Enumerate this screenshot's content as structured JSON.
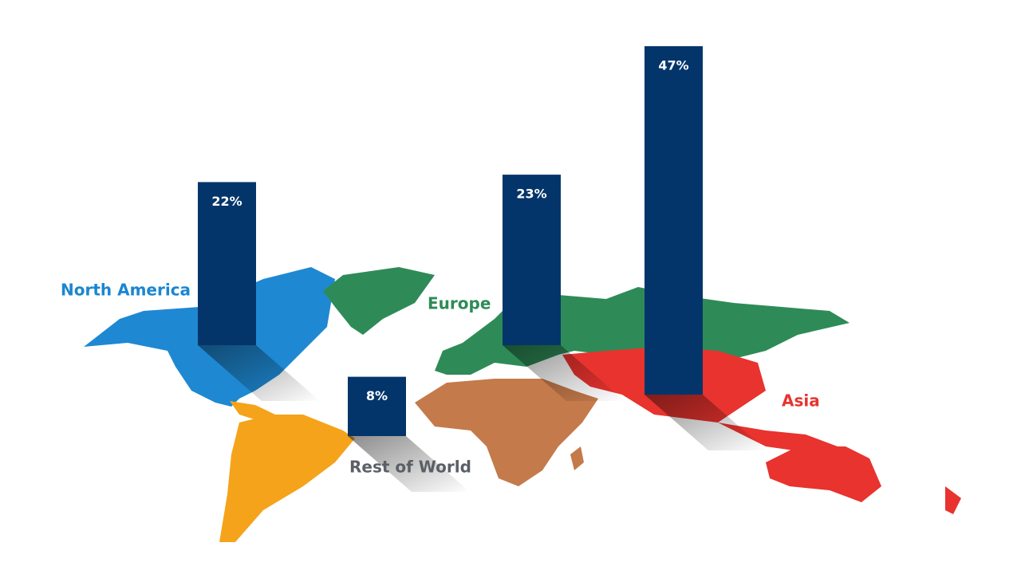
{
  "chart_data": {
    "type": "bar",
    "categories": [
      "North America",
      "Rest of World",
      "Europe",
      "Asia"
    ],
    "values": [
      22,
      8,
      23,
      47
    ],
    "value_labels": [
      "22%",
      "8%",
      "23%",
      "47%"
    ],
    "color": "#04356a",
    "label_colors": [
      "#1a86d0",
      "#5b5f66",
      "#2e8b57",
      "#e8332e"
    ]
  }
}
